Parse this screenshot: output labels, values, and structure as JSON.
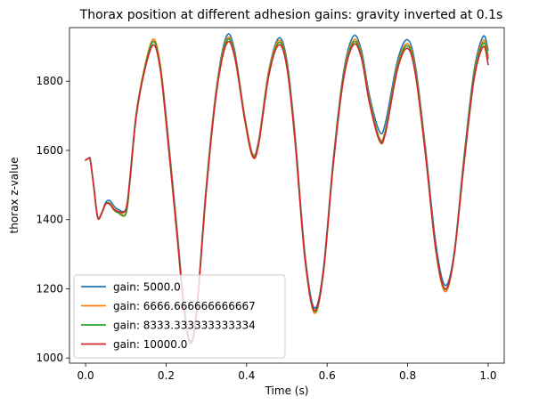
{
  "chart_data": {
    "type": "line",
    "title": "Thorax position at different adhesion gains: gravity inverted at 0.1s",
    "xlabel": "Time (s)",
    "ylabel": "thorax z-value",
    "xlim": [
      -0.04,
      1.04
    ],
    "ylim": [
      985,
      1955
    ],
    "x_ticks": [
      0.0,
      0.2,
      0.4,
      0.6,
      0.8,
      1.0
    ],
    "x_tick_labels": [
      "0.0",
      "0.2",
      "0.4",
      "0.6",
      "0.8",
      "1.0"
    ],
    "y_ticks": [
      1000,
      1200,
      1400,
      1600,
      1800
    ],
    "y_tick_labels": [
      "1000",
      "1200",
      "1400",
      "1600",
      "1800"
    ],
    "grid": false,
    "legend_position": "lower-left",
    "series": [
      {
        "name": "gain: 5000.0",
        "color": "#1f77b4",
        "points": [
          [
            0.0,
            1572
          ],
          [
            0.008,
            1578
          ],
          [
            0.012,
            1572
          ],
          [
            0.02,
            1500
          ],
          [
            0.03,
            1408
          ],
          [
            0.04,
            1420
          ],
          [
            0.05,
            1450
          ],
          [
            0.06,
            1455
          ],
          [
            0.07,
            1440
          ],
          [
            0.08,
            1430
          ],
          [
            0.1,
            1430
          ],
          [
            0.11,
            1520
          ],
          [
            0.125,
            1700
          ],
          [
            0.145,
            1830
          ],
          [
            0.168,
            1915
          ],
          [
            0.185,
            1850
          ],
          [
            0.2,
            1700
          ],
          [
            0.225,
            1400
          ],
          [
            0.245,
            1150
          ],
          [
            0.26,
            1050
          ],
          [
            0.275,
            1130
          ],
          [
            0.3,
            1500
          ],
          [
            0.325,
            1780
          ],
          [
            0.35,
            1930
          ],
          [
            0.37,
            1890
          ],
          [
            0.395,
            1700
          ],
          [
            0.415,
            1590
          ],
          [
            0.43,
            1630
          ],
          [
            0.455,
            1830
          ],
          [
            0.48,
            1925
          ],
          [
            0.5,
            1860
          ],
          [
            0.52,
            1650
          ],
          [
            0.545,
            1300
          ],
          [
            0.568,
            1145
          ],
          [
            0.59,
            1250
          ],
          [
            0.615,
            1570
          ],
          [
            0.64,
            1820
          ],
          [
            0.665,
            1930
          ],
          [
            0.685,
            1890
          ],
          [
            0.705,
            1760
          ],
          [
            0.73,
            1655
          ],
          [
            0.745,
            1680
          ],
          [
            0.775,
            1860
          ],
          [
            0.8,
            1920
          ],
          [
            0.82,
            1840
          ],
          [
            0.845,
            1600
          ],
          [
            0.87,
            1330
          ],
          [
            0.893,
            1210
          ],
          [
            0.915,
            1300
          ],
          [
            0.94,
            1580
          ],
          [
            0.965,
            1830
          ],
          [
            0.988,
            1930
          ],
          [
            1.0,
            1890
          ]
        ]
      },
      {
        "name": "gain: 6666.666666666667",
        "color": "#ff7f0e",
        "points": [
          [
            0.0,
            1572
          ],
          [
            0.008,
            1577
          ],
          [
            0.012,
            1570
          ],
          [
            0.02,
            1498
          ],
          [
            0.03,
            1406
          ],
          [
            0.04,
            1418
          ],
          [
            0.05,
            1445
          ],
          [
            0.06,
            1448
          ],
          [
            0.07,
            1432
          ],
          [
            0.08,
            1424
          ],
          [
            0.1,
            1418
          ],
          [
            0.11,
            1510
          ],
          [
            0.125,
            1695
          ],
          [
            0.145,
            1832
          ],
          [
            0.168,
            1922
          ],
          [
            0.185,
            1852
          ],
          [
            0.2,
            1690
          ],
          [
            0.225,
            1390
          ],
          [
            0.245,
            1140
          ],
          [
            0.26,
            1045
          ],
          [
            0.275,
            1125
          ],
          [
            0.3,
            1495
          ],
          [
            0.325,
            1775
          ],
          [
            0.35,
            1920
          ],
          [
            0.37,
            1882
          ],
          [
            0.395,
            1700
          ],
          [
            0.415,
            1588
          ],
          [
            0.43,
            1626
          ],
          [
            0.455,
            1826
          ],
          [
            0.48,
            1918
          ],
          [
            0.5,
            1852
          ],
          [
            0.52,
            1640
          ],
          [
            0.545,
            1290
          ],
          [
            0.568,
            1130
          ],
          [
            0.59,
            1238
          ],
          [
            0.615,
            1560
          ],
          [
            0.64,
            1812
          ],
          [
            0.665,
            1918
          ],
          [
            0.685,
            1880
          ],
          [
            0.705,
            1750
          ],
          [
            0.73,
            1636
          ],
          [
            0.745,
            1660
          ],
          [
            0.775,
            1848
          ],
          [
            0.8,
            1908
          ],
          [
            0.82,
            1828
          ],
          [
            0.845,
            1590
          ],
          [
            0.87,
            1310
          ],
          [
            0.893,
            1192
          ],
          [
            0.915,
            1290
          ],
          [
            0.94,
            1570
          ],
          [
            0.965,
            1820
          ],
          [
            0.988,
            1918
          ],
          [
            1.0,
            1875
          ]
        ]
      },
      {
        "name": "gain: 8333.333333333334",
        "color": "#2ca02c",
        "points": [
          [
            0.0,
            1572
          ],
          [
            0.008,
            1577
          ],
          [
            0.012,
            1570
          ],
          [
            0.02,
            1498
          ],
          [
            0.03,
            1406
          ],
          [
            0.04,
            1418
          ],
          [
            0.05,
            1446
          ],
          [
            0.06,
            1446
          ],
          [
            0.07,
            1428
          ],
          [
            0.08,
            1420
          ],
          [
            0.1,
            1416
          ],
          [
            0.11,
            1508
          ],
          [
            0.125,
            1692
          ],
          [
            0.145,
            1828
          ],
          [
            0.168,
            1915
          ],
          [
            0.185,
            1845
          ],
          [
            0.2,
            1685
          ],
          [
            0.225,
            1385
          ],
          [
            0.245,
            1138
          ],
          [
            0.26,
            1045
          ],
          [
            0.275,
            1122
          ],
          [
            0.3,
            1490
          ],
          [
            0.325,
            1770
          ],
          [
            0.35,
            1915
          ],
          [
            0.37,
            1878
          ],
          [
            0.395,
            1696
          ],
          [
            0.415,
            1585
          ],
          [
            0.43,
            1622
          ],
          [
            0.455,
            1820
          ],
          [
            0.48,
            1912
          ],
          [
            0.5,
            1848
          ],
          [
            0.52,
            1636
          ],
          [
            0.545,
            1288
          ],
          [
            0.568,
            1135
          ],
          [
            0.59,
            1240
          ],
          [
            0.615,
            1558
          ],
          [
            0.64,
            1808
          ],
          [
            0.665,
            1912
          ],
          [
            0.685,
            1875
          ],
          [
            0.705,
            1745
          ],
          [
            0.73,
            1632
          ],
          [
            0.745,
            1656
          ],
          [
            0.775,
            1842
          ],
          [
            0.8,
            1902
          ],
          [
            0.82,
            1822
          ],
          [
            0.845,
            1585
          ],
          [
            0.87,
            1312
          ],
          [
            0.893,
            1198
          ],
          [
            0.915,
            1292
          ],
          [
            0.94,
            1568
          ],
          [
            0.965,
            1815
          ],
          [
            0.988,
            1910
          ],
          [
            1.0,
            1865
          ]
        ]
      },
      {
        "name": "gain: 10000.0",
        "color": "#d62728",
        "points": [
          [
            0.0,
            1572
          ],
          [
            0.008,
            1577
          ],
          [
            0.012,
            1570
          ],
          [
            0.02,
            1498
          ],
          [
            0.03,
            1406
          ],
          [
            0.04,
            1418
          ],
          [
            0.05,
            1445
          ],
          [
            0.06,
            1444
          ],
          [
            0.07,
            1430
          ],
          [
            0.08,
            1424
          ],
          [
            0.1,
            1428
          ],
          [
            0.11,
            1515
          ],
          [
            0.125,
            1690
          ],
          [
            0.145,
            1822
          ],
          [
            0.168,
            1905
          ],
          [
            0.185,
            1838
          ],
          [
            0.2,
            1680
          ],
          [
            0.225,
            1380
          ],
          [
            0.245,
            1135
          ],
          [
            0.26,
            1043
          ],
          [
            0.275,
            1120
          ],
          [
            0.3,
            1485
          ],
          [
            0.325,
            1765
          ],
          [
            0.35,
            1908
          ],
          [
            0.37,
            1872
          ],
          [
            0.395,
            1690
          ],
          [
            0.415,
            1582
          ],
          [
            0.43,
            1618
          ],
          [
            0.455,
            1815
          ],
          [
            0.48,
            1905
          ],
          [
            0.5,
            1840
          ],
          [
            0.52,
            1630
          ],
          [
            0.545,
            1285
          ],
          [
            0.568,
            1138
          ],
          [
            0.59,
            1242
          ],
          [
            0.615,
            1555
          ],
          [
            0.64,
            1800
          ],
          [
            0.665,
            1905
          ],
          [
            0.685,
            1868
          ],
          [
            0.705,
            1738
          ],
          [
            0.73,
            1628
          ],
          [
            0.745,
            1650
          ],
          [
            0.775,
            1835
          ],
          [
            0.8,
            1895
          ],
          [
            0.82,
            1815
          ],
          [
            0.845,
            1580
          ],
          [
            0.87,
            1315
          ],
          [
            0.893,
            1200
          ],
          [
            0.915,
            1292
          ],
          [
            0.94,
            1560
          ],
          [
            0.965,
            1805
          ],
          [
            0.988,
            1900
          ],
          [
            1.0,
            1848
          ]
        ]
      }
    ]
  }
}
